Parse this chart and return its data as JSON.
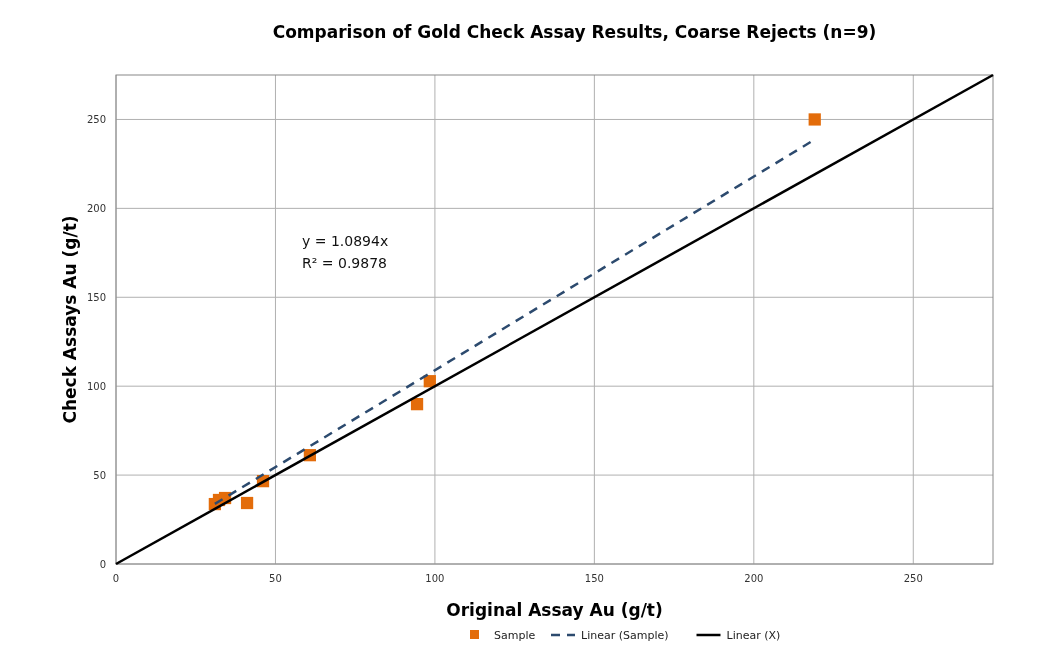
{
  "chart_data": {
    "type": "scatter",
    "title": "Comparison of Gold Check Assay Results, Coarse Rejects (n=9)",
    "xlabel": "Original Assay Au (g/t)",
    "ylabel": "Check Assays Au (g/t)",
    "xlim": [
      0,
      275
    ],
    "ylim": [
      0,
      275
    ],
    "xticks": [
      0,
      50,
      100,
      150,
      200,
      250
    ],
    "yticks": [
      0,
      50,
      100,
      150,
      200,
      250
    ],
    "grid": true,
    "legend": "bottom",
    "annotations": [
      "y = 1.0894x",
      "R² = 0.9878"
    ],
    "series": [
      {
        "name": "Sample",
        "marker": "square",
        "color": "#e36c0a",
        "x": [
          31.0,
          32.3,
          34.2,
          41.1,
          46.1,
          60.8,
          94.4,
          98.4,
          219.1
        ],
        "values": [
          33.7,
          36.0,
          37.1,
          34.3,
          46.6,
          61.2,
          89.9,
          102.8,
          250.0
        ]
      },
      {
        "name": "Linear (Sample)",
        "type": "line",
        "marker": "none",
        "line_style": "dashed",
        "color": "#2c4a6e",
        "x": [
          31,
          219
        ],
        "values": [
          33.8,
          238.6
        ]
      },
      {
        "name": "Linear (X)",
        "type": "line",
        "marker": "none",
        "line_style": "solid",
        "color": "#000000",
        "x": [
          0,
          275
        ],
        "values": [
          0,
          275
        ]
      }
    ]
  }
}
